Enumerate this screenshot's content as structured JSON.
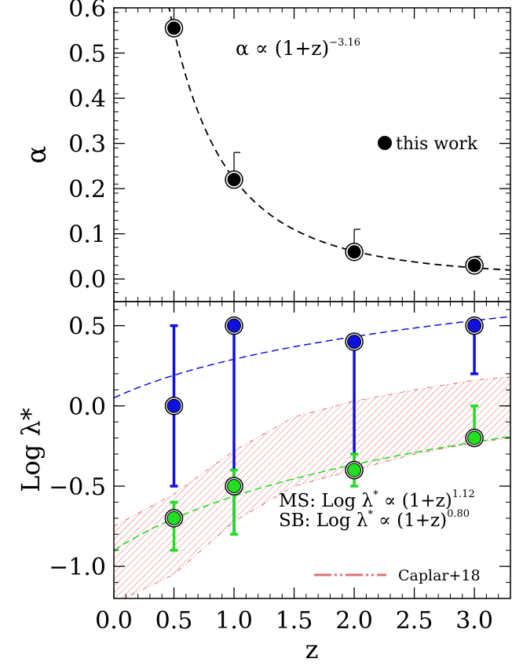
{
  "colors": {
    "black": "#000000",
    "ms_green": "#22dd22",
    "sb_blue": "#1010dd",
    "caplar_red": "#e07070"
  },
  "chart_data": [
    {
      "type": "scatter",
      "panel": "top",
      "ylabel": "α",
      "ylim": [
        -0.05,
        0.6
      ],
      "xlim": [
        0.0,
        3.3
      ],
      "yticks": [
        "0.0",
        "0.1",
        "0.2",
        "0.3",
        "0.4",
        "0.5",
        "0.6"
      ],
      "annotation": {
        "base": "α ∝ (1+z)",
        "exponent": "−3.16"
      },
      "series": [
        {
          "name": "this work",
          "color": "#000000",
          "points": [
            {
              "x": 0.5,
              "y": 0.555
            },
            {
              "x": 1.0,
              "y": 0.22,
              "err_up": 0.06
            },
            {
              "x": 2.0,
              "y": 0.06,
              "err_up": 0.05
            },
            {
              "x": 3.0,
              "y": 0.03,
              "err_up": 0.02
            }
          ]
        }
      ],
      "fit": {
        "form": "power",
        "amplitude": 1.98,
        "exponent": -3.16,
        "style": "dashed"
      }
    },
    {
      "type": "scatter",
      "panel": "bottom",
      "ylabel": "Log λ*",
      "xlabel": "z",
      "xlim": [
        0.0,
        3.3
      ],
      "ylim": [
        -1.2,
        0.65
      ],
      "xticks": [
        "0.0",
        "0.5",
        "1.0",
        "1.5",
        "2.0",
        "2.5",
        "3.0"
      ],
      "yticks": [
        "0.5",
        "0.0",
        "-0.5",
        "-1.0"
      ],
      "series": [
        {
          "name": "SB",
          "color": "#1010dd",
          "points": [
            {
              "x": 0.5,
              "y": 0.0,
              "err_lo": 0.5,
              "err_hi": 0.5
            },
            {
              "x": 1.0,
              "y": 0.5,
              "err_lo": 1.3,
              "err_hi": 0.0
            },
            {
              "x": 2.0,
              "y": 0.4,
              "err_lo": 0.8,
              "err_hi": 0.0
            },
            {
              "x": 3.0,
              "y": 0.5,
              "err_lo": 0.3,
              "err_hi": 0.0
            }
          ]
        },
        {
          "name": "MS",
          "color": "#22dd22",
          "points": [
            {
              "x": 0.5,
              "y": -0.7,
              "err_lo": 0.2,
              "err_hi": 0.1
            },
            {
              "x": 1.0,
              "y": -0.5,
              "err_lo": 0.3,
              "err_hi": 0.1
            },
            {
              "x": 2.0,
              "y": -0.4,
              "err_lo": 0.1,
              "err_hi": 0.1
            },
            {
              "x": 3.0,
              "y": -0.2,
              "err_lo": 0.0,
              "err_hi": 0.2
            }
          ]
        }
      ],
      "fits": [
        {
          "series": "SB",
          "color": "#1010dd",
          "form": "log_power",
          "c": 0.05,
          "k": 0.8
        },
        {
          "series": "MS",
          "color": "#22dd22",
          "form": "log_power",
          "c": -0.9,
          "k": 1.12
        }
      ],
      "band": {
        "name": "Caplar+18",
        "color": "#e07070",
        "x": [
          0.0,
          0.5,
          1.0,
          1.5,
          2.0,
          2.5,
          3.0,
          3.3
        ],
        "upper": [
          -0.75,
          -0.55,
          -0.28,
          -0.07,
          0.03,
          0.1,
          0.16,
          0.18
        ],
        "lower": [
          -1.23,
          -1.05,
          -0.72,
          -0.5,
          -0.4,
          -0.3,
          -0.23,
          -0.2
        ]
      },
      "legend": {
        "ms": {
          "base": "MS: Log λ",
          "star": "*",
          "mid": " ∝ (1+z)",
          "exponent": "1.12"
        },
        "sb": {
          "base": "SB: Log λ",
          "star": "*",
          "mid": " ∝ (1+z)",
          "exponent": "0.80"
        },
        "caplar": "Caplar+18"
      }
    }
  ]
}
